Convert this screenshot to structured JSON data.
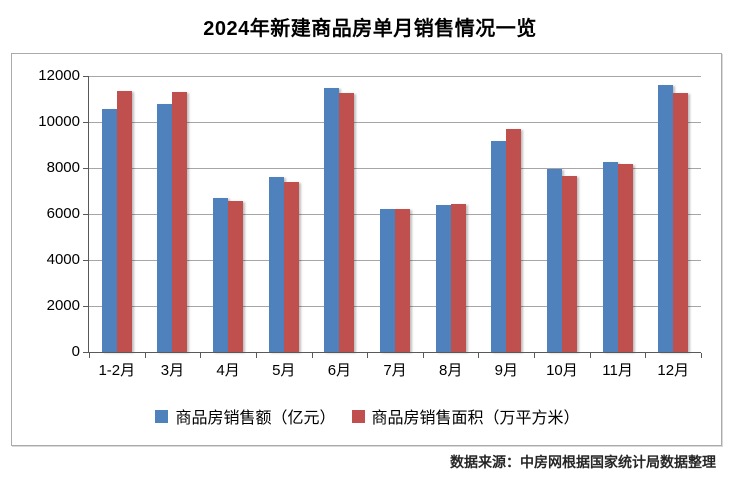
{
  "chart_data": {
    "type": "bar",
    "title": "2024年新建商品房单月销售情况一览",
    "categories": [
      "1-2月",
      "3月",
      "4月",
      "5月",
      "6月",
      "7月",
      "8月",
      "9月",
      "10月",
      "11月",
      "12月"
    ],
    "series": [
      {
        "id": "sales-amount",
        "name": "商品房销售额（亿元）",
        "color": "#4F81BD",
        "values": [
          10566,
          10789,
          6712,
          7598,
          11468,
          6197,
          6393,
          9157,
          7975,
          8270,
          11625
        ]
      },
      {
        "id": "sales-area",
        "name": "商品房销售面积（万平方米）",
        "color": "#C0504D",
        "values": [
          11369,
          11299,
          6584,
          7390,
          11274,
          6233,
          6453,
          9682,
          7646,
          8188,
          11267
        ]
      }
    ],
    "ylim": [
      0,
      12000
    ],
    "yticks": [
      0,
      2000,
      4000,
      6000,
      8000,
      10000,
      12000
    ],
    "grid": true,
    "legend_position": "bottom",
    "axis_color": "#595959",
    "gridline_color": "#A6A6A6"
  },
  "footer": {
    "source_label": "数据来源：中房网根据国家统计局数据整理"
  }
}
